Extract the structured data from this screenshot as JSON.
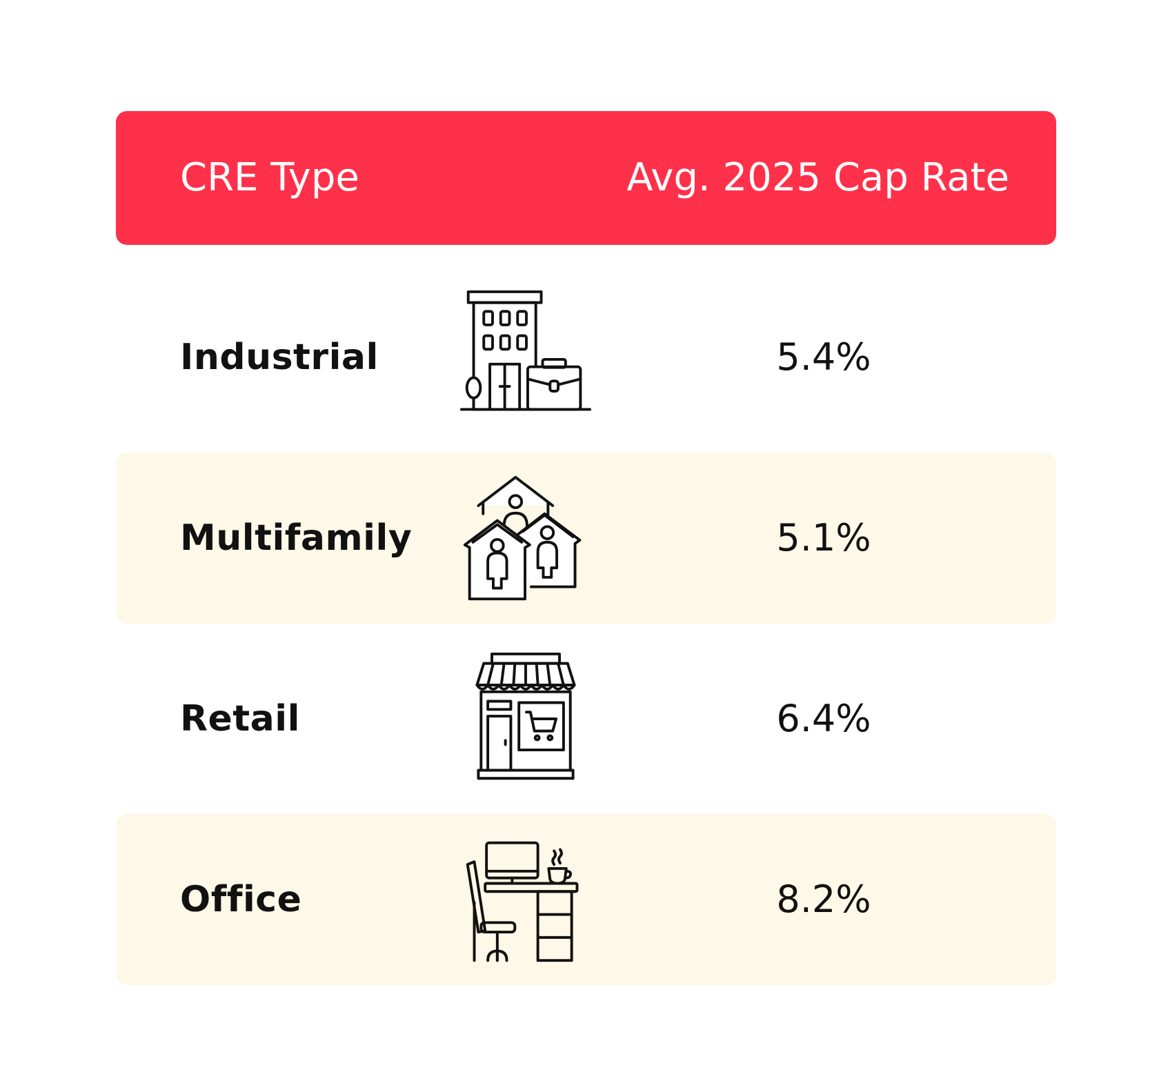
{
  "chart_data": {
    "type": "table",
    "columns": [
      "CRE Type",
      "Avg. 2025 Cap Rate"
    ],
    "rows": [
      {
        "type": "Industrial",
        "cap_rate": "5.4%",
        "cap_rate_value": 5.4,
        "icon": "office-building-briefcase-icon",
        "shaded": false
      },
      {
        "type": "Multifamily",
        "cap_rate": "5.1%",
        "cap_rate_value": 5.1,
        "icon": "houses-people-icon",
        "shaded": true
      },
      {
        "type": "Retail",
        "cap_rate": "6.4%",
        "cap_rate_value": 6.4,
        "icon": "storefront-cart-icon",
        "shaded": false
      },
      {
        "type": "Office",
        "cap_rate": "8.2%",
        "cap_rate_value": 8.2,
        "icon": "desk-computer-chair-icon",
        "shaded": true
      }
    ]
  },
  "colors": {
    "header_bg": "#ff3049",
    "header_text": "#ffffff",
    "row_shade": "#fdf8e7",
    "text": "#111111"
  }
}
